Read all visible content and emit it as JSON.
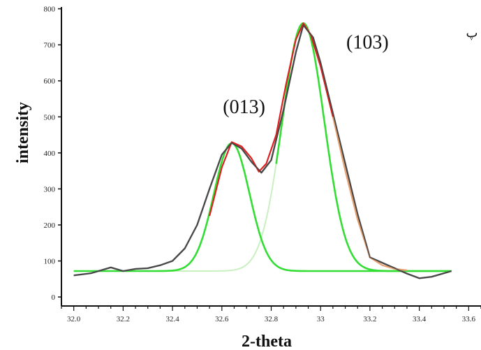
{
  "chart_data": {
    "type": "line",
    "xlabel": "2-theta",
    "ylabel": "intensity",
    "xlim": [
      31.95,
      33.65
    ],
    "ylim": [
      -25,
      805
    ],
    "x_ticks": [
      "32.0",
      "32.2",
      "32.4",
      "32.6",
      "32.8",
      "33",
      "33.2",
      "33.4",
      "33.6"
    ],
    "x_tick_values": [
      32.0,
      32.2,
      32.4,
      32.6,
      32.8,
      33.0,
      33.2,
      33.4,
      33.6
    ],
    "y_ticks": [
      "0",
      "100",
      "200",
      "300",
      "400",
      "500",
      "600",
      "700",
      "800"
    ],
    "y_tick_values": [
      0,
      100,
      200,
      300,
      400,
      500,
      600,
      700,
      800
    ],
    "annotations": [
      {
        "text": "(013)",
        "x": 32.69,
        "y": 510
      },
      {
        "text": "(103)",
        "x": 33.19,
        "y": 690
      }
    ],
    "corner_mark": "پ",
    "baseline": 72,
    "peaks": [
      {
        "name": "(013)",
        "center": 32.64,
        "height": 355,
        "width": 0.072,
        "color": "#33dd33"
      },
      {
        "name": "(103)",
        "center": 32.93,
        "height": 688,
        "width": 0.085,
        "color": "#33dd33"
      }
    ],
    "series": [
      {
        "color": "#555555",
        "x": [
          32.0,
          32.07,
          32.15,
          32.2,
          32.25,
          32.3,
          32.35,
          32.4,
          32.45,
          32.5,
          32.55,
          32.6,
          32.64,
          32.68,
          32.72,
          32.76,
          32.8,
          32.85,
          32.9,
          32.93,
          32.97,
          33.0,
          33.05,
          33.1,
          33.15,
          33.2,
          33.25,
          33.3,
          33.35,
          33.4,
          33.45,
          33.5,
          33.53
        ],
        "y": [
          60,
          66,
          82,
          72,
          78,
          80,
          88,
          100,
          135,
          200,
          300,
          395,
          428,
          412,
          375,
          345,
          380,
          520,
          680,
          755,
          720,
          650,
          510,
          370,
          230,
          110,
          95,
          80,
          65,
          52,
          56,
          66,
          72
        ]
      },
      {
        "color": "#e02020",
        "x": [
          32.55,
          32.6,
          32.64,
          32.68,
          32.72,
          32.75,
          32.78,
          32.82,
          32.86,
          32.9,
          32.93,
          32.96,
          33.0,
          33.05
        ],
        "y": [
          225,
          360,
          430,
          418,
          385,
          348,
          370,
          450,
          590,
          715,
          760,
          728,
          640,
          500
        ]
      },
      {
        "color": "#e8a070",
        "x": [
          33.05,
          33.1,
          33.15,
          33.2,
          33.25,
          33.3,
          33.35
        ],
        "y": [
          500,
          350,
          215,
          110,
          88,
          78,
          74
        ]
      }
    ]
  }
}
